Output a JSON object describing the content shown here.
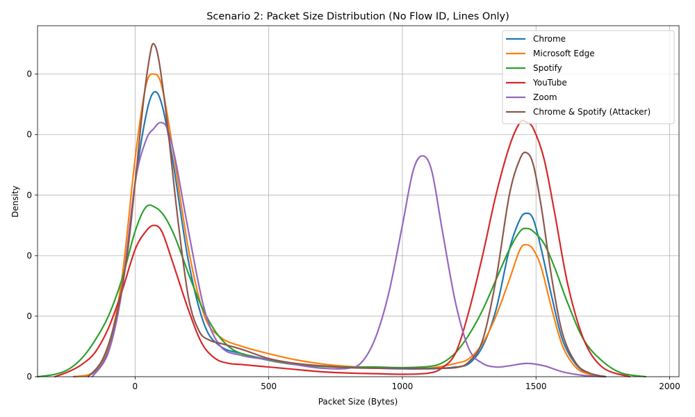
{
  "chart_data": {
    "type": "line",
    "title": "Scenario 2: Packet Size Distribution (No Flow ID, Lines Only)",
    "xlabel": "Packet Size (Bytes)",
    "ylabel": "Density",
    "xlim": [
      -365,
      2035
    ],
    "ylim": [
      0,
      0.0058
    ],
    "x_ticks": [
      0,
      500,
      1000,
      1500,
      2000
    ],
    "x_tick_labels": [
      "0",
      "500",
      "1000",
      "1500",
      "2000"
    ],
    "y_ticks": [
      0,
      0.001,
      0.002,
      0.003,
      0.004,
      0.005
    ],
    "y_tick_labels": [
      "0",
      "0",
      "0",
      "0",
      "0",
      "0"
    ],
    "grid": true,
    "legend_position": "top-right",
    "series": [
      {
        "name": "Chrome",
        "color": "#1f77b4",
        "x": [
          -230,
          -160,
          -100,
          -50,
          0,
          40,
          70,
          100,
          140,
          200,
          260,
          320,
          400,
          500,
          600,
          700,
          800,
          900,
          1000,
          1100,
          1200,
          1250,
          1300,
          1350,
          1400,
          1440,
          1465,
          1490,
          1520,
          1560,
          1600,
          1650,
          1700,
          1760
        ],
        "y": [
          0.0,
          5e-05,
          0.00045,
          0.0014,
          0.0032,
          0.0043,
          0.0047,
          0.0045,
          0.0036,
          0.0019,
          0.00085,
          0.0005,
          0.00038,
          0.00028,
          0.0002,
          0.00017,
          0.00015,
          0.00014,
          0.00013,
          0.00013,
          0.00016,
          0.00022,
          0.0005,
          0.0011,
          0.0021,
          0.0026,
          0.0027,
          0.0026,
          0.0021,
          0.0013,
          0.0006,
          0.0002,
          5e-05,
          0.0
        ]
      },
      {
        "name": "Microsoft Edge",
        "color": "#ff7f0e",
        "x": [
          -230,
          -160,
          -100,
          -50,
          0,
          40,
          70,
          100,
          140,
          200,
          260,
          320,
          400,
          500,
          600,
          700,
          800,
          900,
          1000,
          1100,
          1200,
          1250,
          1300,
          1350,
          1400,
          1440,
          1465,
          1490,
          1520,
          1560,
          1600,
          1650,
          1700,
          1760
        ],
        "y": [
          0.0,
          6e-05,
          0.0005,
          0.0016,
          0.0036,
          0.0048,
          0.005,
          0.0048,
          0.0038,
          0.0021,
          0.001,
          0.00065,
          0.0005,
          0.00038,
          0.00028,
          0.00021,
          0.00017,
          0.00015,
          0.00014,
          0.00014,
          0.00022,
          0.0003,
          0.00055,
          0.001,
          0.0016,
          0.0021,
          0.00218,
          0.0021,
          0.0018,
          0.0011,
          0.0005,
          0.00015,
          4e-05,
          0.0
        ]
      },
      {
        "name": "Spotify",
        "color": "#2ca02c",
        "x": [
          -365,
          -300,
          -250,
          -200,
          -150,
          -100,
          -50,
          0,
          40,
          75,
          110,
          150,
          200,
          250,
          300,
          350,
          400,
          500,
          600,
          700,
          800,
          900,
          1000,
          1100,
          1150,
          1200,
          1250,
          1300,
          1350,
          1400,
          1440,
          1465,
          1490,
          1530,
          1570,
          1620,
          1680,
          1750,
          1820,
          1910
        ],
        "y": [
          0.0,
          4e-05,
          0.00012,
          0.0003,
          0.0006,
          0.001,
          0.0016,
          0.0024,
          0.0028,
          0.0028,
          0.00265,
          0.0023,
          0.0017,
          0.00115,
          0.00075,
          0.0005,
          0.00038,
          0.00027,
          0.0002,
          0.00017,
          0.00016,
          0.00016,
          0.00015,
          0.00017,
          0.00023,
          0.0004,
          0.0007,
          0.0011,
          0.0016,
          0.0021,
          0.0024,
          0.00245,
          0.0024,
          0.0022,
          0.0018,
          0.0012,
          0.0006,
          0.00025,
          6e-05,
          0.0
        ]
      },
      {
        "name": "YouTube",
        "color": "#d62728",
        "x": [
          -300,
          -250,
          -200,
          -150,
          -100,
          -50,
          0,
          40,
          70,
          100,
          140,
          200,
          250,
          300,
          350,
          400,
          500,
          600,
          700,
          800,
          900,
          1000,
          1100,
          1150,
          1200,
          1250,
          1300,
          1350,
          1400,
          1440,
          1465,
          1490,
          1530,
          1570,
          1620,
          1680,
          1750,
          1850
        ],
        "y": [
          0.0,
          8e-05,
          0.0002,
          0.0004,
          0.0008,
          0.0014,
          0.0021,
          0.0024,
          0.0025,
          0.0024,
          0.0019,
          0.0011,
          0.00055,
          0.0003,
          0.00022,
          0.0002,
          0.00016,
          0.00012,
          8e-05,
          6e-05,
          5e-05,
          4e-05,
          6e-05,
          0.00015,
          0.0004,
          0.0011,
          0.002,
          0.003,
          0.0038,
          0.0042,
          0.0042,
          0.0041,
          0.0036,
          0.0027,
          0.0015,
          0.0006,
          0.00015,
          0.0
        ]
      },
      {
        "name": "Zoom",
        "color": "#9467bd",
        "x": [
          -160,
          -100,
          -50,
          0,
          40,
          70,
          95,
          120,
          150,
          200,
          260,
          320,
          400,
          500,
          600,
          700,
          800,
          850,
          900,
          950,
          1000,
          1040,
          1075,
          1110,
          1150,
          1200,
          1250,
          1300,
          1350,
          1400,
          1465,
          1530,
          1600,
          1680,
          1760
        ],
        "y": [
          0.0,
          0.0004,
          0.0014,
          0.0032,
          0.0039,
          0.0041,
          0.0042,
          0.0041,
          0.0036,
          0.0024,
          0.0011,
          0.0005,
          0.00035,
          0.00028,
          0.0002,
          0.00014,
          0.00014,
          0.00025,
          0.00065,
          0.0014,
          0.0025,
          0.0034,
          0.00365,
          0.0034,
          0.0024,
          0.0012,
          0.00045,
          0.00022,
          0.00016,
          0.00018,
          0.00022,
          0.00018,
          8e-05,
          2e-05,
          0.0
        ]
      },
      {
        "name": "Chrome & Spotify (Attacker)",
        "color": "#8c564b",
        "x": [
          -175,
          -120,
          -70,
          -30,
          0,
          30,
          55,
          70,
          90,
          120,
          160,
          200,
          240,
          280,
          320,
          400,
          500,
          600,
          700,
          800,
          900,
          1000,
          1100,
          1200,
          1250,
          1300,
          1350,
          1400,
          1440,
          1465,
          1490,
          1520,
          1560,
          1600,
          1650,
          1700,
          1760
        ],
        "y": [
          0.0,
          0.0003,
          0.001,
          0.002,
          0.0032,
          0.0045,
          0.0053,
          0.0055,
          0.0052,
          0.0042,
          0.0026,
          0.0013,
          0.00075,
          0.0006,
          0.00055,
          0.00045,
          0.0003,
          0.00022,
          0.00018,
          0.00015,
          0.00014,
          0.00014,
          0.00014,
          0.00015,
          0.00025,
          0.0006,
          0.0016,
          0.003,
          0.0036,
          0.0037,
          0.0035,
          0.0028,
          0.0016,
          0.0007,
          0.00022,
          6e-05,
          0.0
        ]
      }
    ]
  }
}
